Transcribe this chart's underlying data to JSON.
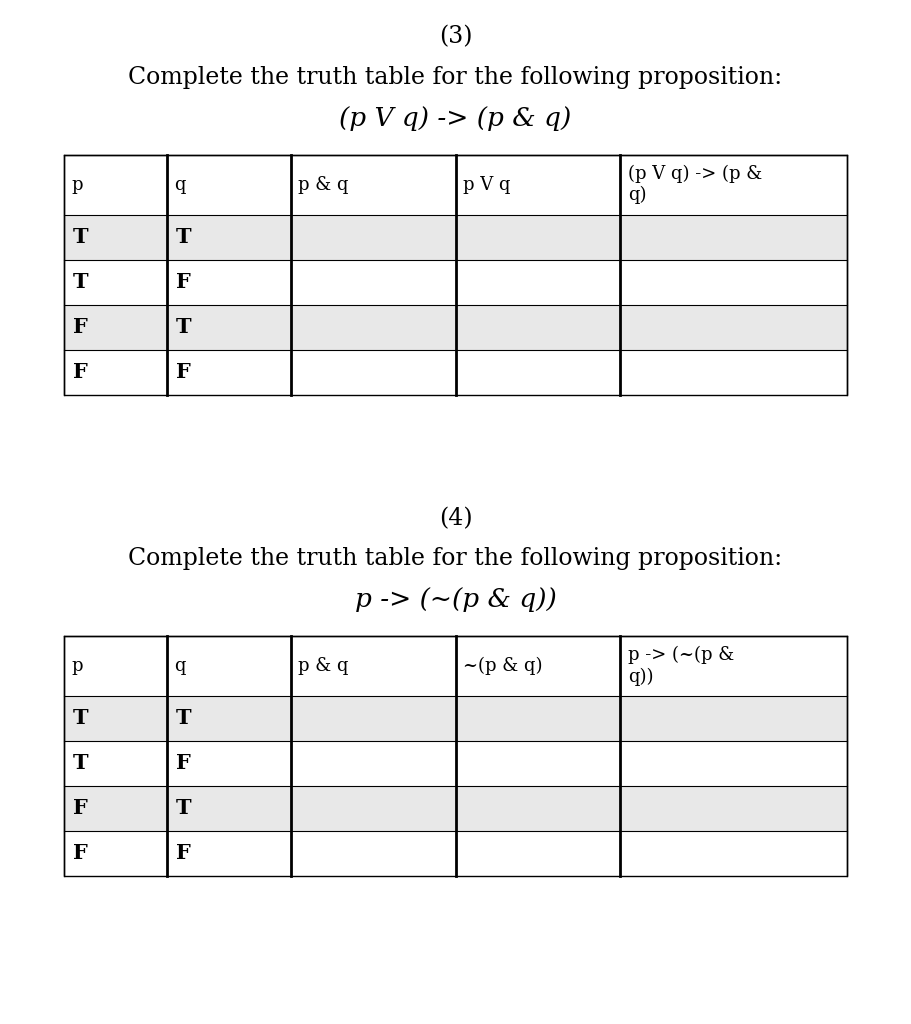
{
  "background_color": "#ffffff",
  "section3": {
    "number": "(3)",
    "subtitle": "Complete the truth table for the following proposition:",
    "formula": "(p V q) -> (p & q)",
    "col_headers": [
      "p",
      "q",
      "p & q",
      "p V q",
      "(p V q) -> (p &\nq)"
    ],
    "rows": [
      [
        "T",
        "T",
        "",
        "",
        ""
      ],
      [
        "T",
        "F",
        "",
        "",
        ""
      ],
      [
        "F",
        "T",
        "",
        "",
        ""
      ],
      [
        "F",
        "F",
        "",
        "",
        ""
      ]
    ]
  },
  "section4": {
    "number": "(4)",
    "subtitle": "Complete the truth table for the following proposition:",
    "formula": "p -> (~(p & q))",
    "col_headers": [
      "p",
      "q",
      "p & q",
      "~(p & q)",
      "p -> (~(p &\nq))"
    ],
    "rows": [
      [
        "T",
        "T",
        "",
        "",
        ""
      ],
      [
        "T",
        "F",
        "",
        "",
        ""
      ],
      [
        "F",
        "T",
        "",
        "",
        ""
      ],
      [
        "F",
        "F",
        "",
        "",
        ""
      ]
    ]
  },
  "title_fontsize": 17,
  "subtitle_fontsize": 17,
  "formula_fontsize": 19,
  "cell_fontsize": 15,
  "header_fontsize": 13,
  "even_row_bg": "#e8e8e8",
  "odd_row_bg": "#ffffff",
  "header_bg": "#ffffff",
  "border_color": "#000000",
  "text_color": "#000000"
}
